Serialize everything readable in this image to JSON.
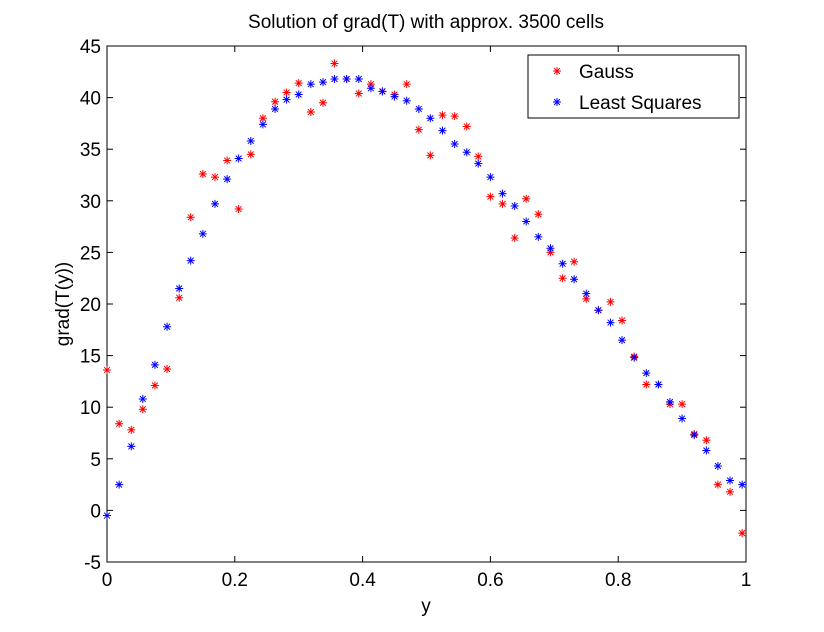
{
  "chart_data": {
    "type": "scatter",
    "title": "Solution of grad(T) with approx. 3500 cells",
    "xlabel": "y",
    "ylabel": "grad(T(y))",
    "xlim": [
      0,
      1
    ],
    "ylim": [
      -5,
      45
    ],
    "xticks": [
      0,
      0.2,
      0.4,
      0.6,
      0.8,
      1
    ],
    "xtick_labels": [
      "0",
      "0.2",
      "0.4",
      "0.6",
      "0.8",
      "1"
    ],
    "yticks": [
      -5,
      0,
      5,
      10,
      15,
      20,
      25,
      30,
      35,
      40,
      45
    ],
    "ytick_labels": [
      "-5",
      "0",
      "5",
      "10",
      "15",
      "20",
      "25",
      "30",
      "35",
      "40",
      "45"
    ],
    "grid": false,
    "legend_position": "top-right",
    "marker": "*",
    "series": [
      {
        "name": "Gauss",
        "color": "#ff0000",
        "x": [
          0.0,
          0.019,
          0.038,
          0.056,
          0.075,
          0.094,
          0.113,
          0.131,
          0.15,
          0.169,
          0.188,
          0.206,
          0.225,
          0.244,
          0.263,
          0.281,
          0.3,
          0.319,
          0.338,
          0.356,
          0.375,
          0.394,
          0.413,
          0.431,
          0.45,
          0.469,
          0.488,
          0.506,
          0.525,
          0.544,
          0.563,
          0.581,
          0.6,
          0.619,
          0.638,
          0.656,
          0.675,
          0.694,
          0.713,
          0.731,
          0.75,
          0.769,
          0.788,
          0.806,
          0.825,
          0.844,
          0.863,
          0.881,
          0.9,
          0.919,
          0.938,
          0.956,
          0.975,
          0.994
        ],
        "y": [
          13.6,
          8.4,
          7.8,
          9.8,
          12.1,
          13.7,
          20.6,
          28.4,
          32.6,
          32.3,
          33.9,
          29.2,
          34.5,
          38.0,
          39.6,
          40.5,
          41.4,
          38.6,
          39.5,
          43.3,
          41.8,
          40.4,
          41.3,
          40.6,
          40.3,
          41.3,
          36.9,
          34.4,
          38.3,
          38.2,
          37.2,
          34.3,
          30.4,
          29.7,
          26.4,
          30.2,
          28.7,
          25.0,
          22.5,
          24.1,
          20.5,
          19.4,
          20.2,
          18.4,
          14.9,
          12.2,
          12.2,
          10.3,
          10.3,
          7.4,
          6.8,
          2.5,
          1.8,
          -2.2
        ]
      },
      {
        "name": "Least Squares",
        "color": "#0000ff",
        "x": [
          0.0,
          0.019,
          0.038,
          0.056,
          0.075,
          0.094,
          0.113,
          0.131,
          0.15,
          0.169,
          0.188,
          0.206,
          0.225,
          0.244,
          0.263,
          0.281,
          0.3,
          0.319,
          0.338,
          0.356,
          0.375,
          0.394,
          0.413,
          0.431,
          0.45,
          0.469,
          0.488,
          0.506,
          0.525,
          0.544,
          0.563,
          0.581,
          0.6,
          0.619,
          0.638,
          0.656,
          0.675,
          0.694,
          0.713,
          0.731,
          0.75,
          0.769,
          0.788,
          0.806,
          0.825,
          0.844,
          0.863,
          0.881,
          0.9,
          0.919,
          0.938,
          0.956,
          0.975,
          0.994
        ],
        "y": [
          -0.5,
          2.5,
          6.2,
          10.8,
          14.1,
          17.8,
          21.5,
          24.2,
          26.8,
          29.7,
          32.1,
          34.1,
          35.8,
          37.4,
          38.9,
          39.8,
          40.3,
          41.3,
          41.5,
          41.8,
          41.8,
          41.8,
          40.9,
          40.6,
          40.1,
          39.7,
          38.9,
          38.0,
          36.8,
          35.5,
          34.7,
          33.6,
          32.3,
          30.7,
          29.5,
          28.0,
          26.5,
          25.4,
          23.9,
          22.4,
          21.0,
          19.4,
          18.2,
          16.5,
          14.8,
          13.3,
          12.2,
          10.5,
          8.9,
          7.3,
          5.8,
          4.3,
          2.9,
          2.5
        ]
      }
    ]
  }
}
